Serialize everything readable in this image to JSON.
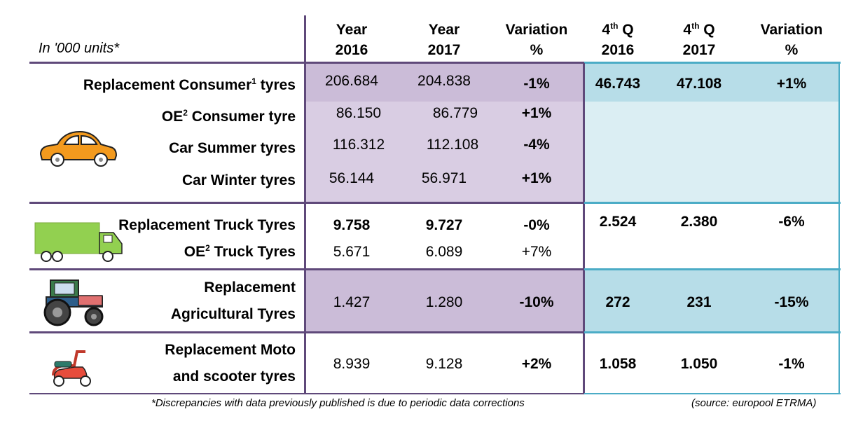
{
  "units_label": "In '000 units*",
  "headers": {
    "y2016": [
      "Year",
      "2016"
    ],
    "y2017": [
      "Year",
      "2017"
    ],
    "var_year": [
      "Variation",
      "%"
    ],
    "q2016": [
      "4th Q",
      "2016"
    ],
    "q2017": [
      "4th Q",
      "2017"
    ],
    "var_q": [
      "Variation",
      "%"
    ]
  },
  "rows": {
    "repl_consumer": {
      "label": "Replacement Consumer",
      "sup": "1",
      "label_tail": " tyres",
      "y2016": "206.684",
      "y2017": "204.838",
      "var": "-1%",
      "q2016": "46.743",
      "q2017": "47.108",
      "qvar": "+1%"
    },
    "oe_consumer": {
      "label": "OE",
      "sup": "2",
      "label_tail": " Consumer tyre",
      "y2016": "86.150",
      "y2017": "86.779",
      "var": "+1%"
    },
    "car_summer": {
      "label": "Car Summer tyres",
      "y2016": "116.312",
      "y2017": "112.108",
      "var": "-4%"
    },
    "car_winter": {
      "label": "Car Winter tyres",
      "y2016": "56.144",
      "y2017": "56.971",
      "var": "+1%"
    },
    "repl_truck": {
      "label": "Replacement Truck Tyres",
      "y2016": "9.758",
      "y2017": "9.727",
      "var": "-0%",
      "q2016": "2.524",
      "q2017": "2.380",
      "qvar": "-6%"
    },
    "oe_truck": {
      "label": "OE",
      "sup": "2",
      "label_tail": " Truck Tyres",
      "y2016": "5.671",
      "y2017": "6.089",
      "var": "+7%"
    },
    "agri": {
      "label_line1": "Replacement",
      "label_line2": "Agricultural Tyres",
      "y2016": "1.427",
      "y2017": "1.280",
      "var": "-10%",
      "q2016": "272",
      "q2017": "231",
      "qvar": "-15%"
    },
    "moto": {
      "label_line1": "Replacement Moto",
      "label_line2": "and scooter tyres",
      "y2016": "8.939",
      "y2017": "9.128",
      "var": "+2%",
      "q2016": "1.058",
      "q2017": "1.050",
      "qvar": "-1%"
    }
  },
  "footnote": "*Discrepancies with data previously published is due to periodic data corrections",
  "source": "(source: europool ETRMA)",
  "icons": [
    "car-icon",
    "truck-icon",
    "tractor-icon",
    "scooter-icon"
  ],
  "colors": {
    "lavender": "#d9cde3",
    "blue": "#b7dde8",
    "light_blue": "#dbeef3",
    "purple_line": "#5f497a",
    "teal_line": "#4bacc6"
  }
}
